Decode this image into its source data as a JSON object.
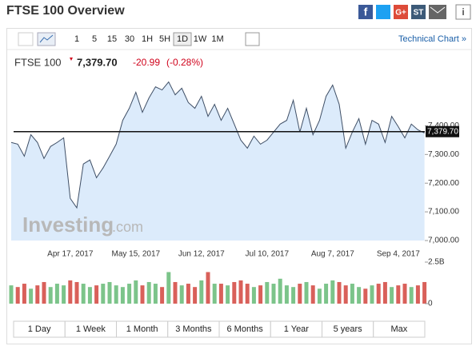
{
  "header": {
    "title": "FTSE 100 Overview",
    "share": [
      "G+",
      "ST"
    ]
  },
  "toolbar": {
    "intervals": [
      "1",
      "5",
      "15",
      "30",
      "1H",
      "5H",
      "1D",
      "1W",
      "1M"
    ],
    "active": "1D",
    "link": "Technical Chart »"
  },
  "quote": {
    "name": "FTSE 100",
    "price": "7,379.70",
    "change": "-20.99",
    "change_percent": "(-0.28%)"
  },
  "watermark": {
    "brand": "Investing",
    "domain": ".com"
  },
  "ranges": [
    "1 Day",
    "1 Week",
    "1 Month",
    "3 Months",
    "6 Months",
    "1 Year",
    "5 years",
    "Max"
  ],
  "chart_data": [
    {
      "type": "area",
      "categories": [
        null,
        null,
        null,
        null,
        null,
        null,
        null,
        null,
        null,
        "Apr 17, 2017",
        null,
        null,
        null,
        null,
        null,
        null,
        null,
        null,
        null,
        "May 15, 2017",
        null,
        null,
        null,
        null,
        null,
        null,
        null,
        null,
        null,
        "Jun 12, 2017",
        null,
        null,
        null,
        null,
        null,
        null,
        null,
        null,
        null,
        "Jul 10, 2017",
        null,
        null,
        null,
        null,
        null,
        null,
        null,
        null,
        null,
        "Aug 7, 2017",
        null,
        null,
        null,
        null,
        null,
        null,
        null,
        null,
        null,
        "Sep 4, 2017",
        null,
        null,
        null,
        null
      ],
      "series": [
        {
          "name": "FTSE 100",
          "color": "#3f4f66",
          "fill": "#dcebfb",
          "values": [
            7342,
            7336,
            7294,
            7369,
            7342,
            7286,
            7328,
            7342,
            7358,
            7147,
            7114,
            7267,
            7281,
            7219,
            7253,
            7294,
            7336,
            7419,
            7461,
            7517,
            7447,
            7497,
            7536,
            7525,
            7553,
            7508,
            7531,
            7481,
            7461,
            7503,
            7433,
            7475,
            7419,
            7461,
            7406,
            7350,
            7322,
            7364,
            7336,
            7350,
            7378,
            7406,
            7419,
            7489,
            7378,
            7461,
            7369,
            7419,
            7503,
            7542,
            7475,
            7322,
            7378,
            7425,
            7336,
            7419,
            7406,
            7342,
            7433,
            7397,
            7358,
            7406,
            7386,
            7375
          ]
        }
      ],
      "ylim": [
        7000,
        7560
      ],
      "yticks": [
        {
          "value": 7000,
          "label": "7,000.00"
        },
        {
          "value": 7100,
          "label": "7,100.00"
        },
        {
          "value": 7200,
          "label": "7,200.00"
        },
        {
          "value": 7300,
          "label": "7,300.00"
        },
        {
          "value": 7400,
          "label": "7,400.00"
        }
      ],
      "reference_line": {
        "value": 7379.7,
        "label": "7,379.70",
        "color": "#111"
      },
      "grid": false
    },
    {
      "type": "bar",
      "values": [
        1.1,
        1.0,
        1.2,
        0.9,
        1.1,
        1.3,
        1.0,
        1.2,
        1.1,
        1.4,
        1.3,
        1.2,
        1.0,
        1.1,
        1.2,
        1.3,
        1.1,
        1.0,
        1.2,
        1.4,
        1.1,
        1.3,
        1.2,
        1.0,
        1.9,
        1.3,
        1.1,
        1.2,
        1.0,
        1.4,
        1.9,
        1.2,
        1.2,
        1.1,
        1.3,
        1.4,
        1.2,
        1.0,
        1.1,
        1.3,
        1.2,
        1.5,
        1.1,
        1.0,
        1.2,
        1.3,
        1.1,
        0.9,
        1.2,
        1.4,
        1.3,
        1.1,
        1.2,
        1.0,
        0.9,
        1.1,
        1.2,
        1.3,
        1.0,
        1.1,
        1.2,
        1.0,
        1.1,
        1.3
      ],
      "up_color": "#7cc48a",
      "down_color": "#d9605a",
      "ylim": [
        0,
        2.5
      ],
      "yticks": [
        0,
        {
          "value": 2.5,
          "label": "2.5B"
        }
      ]
    }
  ]
}
